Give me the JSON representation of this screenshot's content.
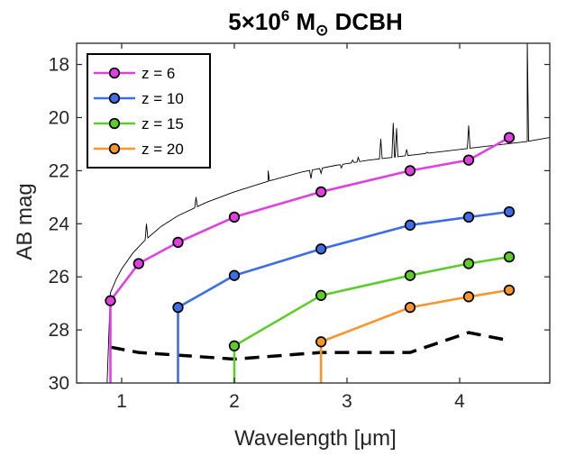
{
  "chart_data": {
    "type": "line",
    "title": {
      "prefix": "5×10",
      "exp": "6",
      "unit": " M",
      "sub": "⊙",
      "suffix": " DCBH"
    },
    "xlabel": "Wavelength [μm]",
    "ylabel": "AB mag",
    "xlim": [
      0.6,
      4.8
    ],
    "ylim": [
      30,
      17.2
    ],
    "y_reversed": true,
    "xticks": [
      1,
      2,
      3,
      4
    ],
    "yticks": [
      18,
      20,
      22,
      24,
      26,
      28,
      30
    ],
    "grid": false,
    "legend_position": "top-left",
    "colors": {
      "axis": "#262626",
      "spectrum": "#000000",
      "limit": "#000000"
    },
    "series": [
      {
        "name": "z = 6",
        "color": "#e040e0",
        "x": [
          0.9,
          1.15,
          1.5,
          2.0,
          2.77,
          3.56,
          4.08,
          4.44
        ],
        "y": [
          26.9,
          25.5,
          24.7,
          23.75,
          22.8,
          22.0,
          21.6,
          20.75
        ],
        "drop_x": 0.9
      },
      {
        "name": "z = 10",
        "color": "#3d6ee8",
        "x": [
          1.5,
          2.0,
          2.77,
          3.56,
          4.08,
          4.44
        ],
        "y": [
          27.15,
          25.95,
          24.95,
          24.05,
          23.75,
          23.55
        ],
        "drop_x": 1.5
      },
      {
        "name": "z = 15",
        "color": "#5fcc2e",
        "x": [
          2.0,
          2.77,
          3.56,
          4.08,
          4.44
        ],
        "y": [
          28.6,
          26.7,
          25.95,
          25.5,
          25.25
        ],
        "drop_x": 2.0
      },
      {
        "name": "z = 20",
        "color": "#f7962c",
        "x": [
          2.77,
          3.56,
          4.08,
          4.44
        ],
        "y": [
          28.45,
          27.15,
          26.75,
          26.5
        ],
        "drop_x": 2.77
      }
    ],
    "sensitivity_limit": {
      "x": [
        0.9,
        1.15,
        1.5,
        2.0,
        2.77,
        3.56,
        4.08,
        4.44
      ],
      "y": [
        28.65,
        28.85,
        28.95,
        29.1,
        28.85,
        28.85,
        28.1,
        28.4
      ]
    },
    "spectrum": {
      "continuum_x": [
        0.87,
        0.9,
        0.95,
        1.0,
        1.1,
        1.2,
        1.35,
        1.5,
        1.75,
        2.0,
        2.3,
        2.6,
        2.9,
        3.2,
        3.5,
        3.8,
        4.1,
        4.4,
        4.6,
        4.8
      ],
      "continuum_y": [
        30,
        26.6,
        26.1,
        25.7,
        25.1,
        24.65,
        24.1,
        23.7,
        23.2,
        22.8,
        22.4,
        22.05,
        21.8,
        21.6,
        21.45,
        21.3,
        21.15,
        21.0,
        20.9,
        20.75
      ],
      "lines": [
        {
          "x": 1.22,
          "peak": 24.0
        },
        {
          "x": 1.66,
          "peak": 23.0
        },
        {
          "x": 2.3,
          "peak": 22.0
        },
        {
          "x": 2.68,
          "peak": 22.3
        },
        {
          "x": 2.77,
          "peak": 22.1
        },
        {
          "x": 2.95,
          "peak": 21.9
        },
        {
          "x": 3.05,
          "peak": 21.6
        },
        {
          "x": 3.1,
          "peak": 21.5
        },
        {
          "x": 3.3,
          "peak": 20.8
        },
        {
          "x": 3.41,
          "peak": 20.2
        },
        {
          "x": 3.44,
          "peak": 20.4
        },
        {
          "x": 3.53,
          "peak": 21.2
        },
        {
          "x": 3.71,
          "peak": 21.3
        },
        {
          "x": 4.08,
          "peak": 20.3
        },
        {
          "x": 4.6,
          "peak": 17.0
        }
      ]
    }
  }
}
